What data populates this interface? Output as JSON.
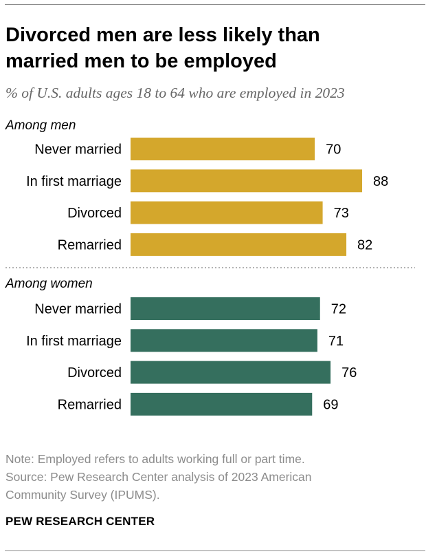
{
  "header": {
    "title_line1": "Divorced men are less likely than",
    "title_line2": "married men to be employed",
    "subtitle": "% of U.S. adults ages 18 to 64 who are employed in 2023"
  },
  "footer": {
    "note": "Note: Employed refers to adults working full or part time.",
    "source_line1": "Source: Pew Research Center analysis of 2023 American",
    "source_line2": "Community Survey (IPUMS).",
    "organization": "PEW RESEARCH CENTER"
  },
  "colors": {
    "men": "#d4a72c",
    "women": "#356f5e"
  },
  "chart_data": {
    "type": "bar",
    "orientation": "horizontal",
    "title": "Divorced men are less likely than married men to be employed",
    "xlabel": "",
    "ylabel": "",
    "unit": "%",
    "xlim": [
      0,
      100
    ],
    "grid": false,
    "categories": [
      "Never married",
      "In first marriage",
      "Divorced",
      "Remarried"
    ],
    "groups": [
      {
        "name": "Among men",
        "color": "#d4a72c",
        "values": [
          70,
          88,
          73,
          82
        ]
      },
      {
        "name": "Among women",
        "color": "#356f5e",
        "values": [
          72,
          71,
          76,
          69
        ]
      }
    ]
  }
}
